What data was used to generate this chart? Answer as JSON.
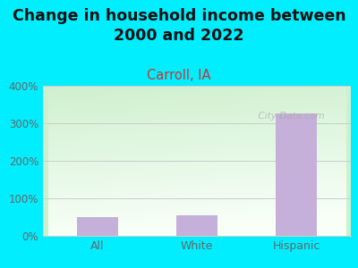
{
  "categories": [
    "All",
    "White",
    "Hispanic"
  ],
  "values": [
    50,
    55,
    325
  ],
  "bar_color": "#c4b0d8",
  "title": "Change in household income between\n2000 and 2022",
  "subtitle": "Carroll, IA",
  "subtitle_color": "#cc3333",
  "title_color": "#111111",
  "title_fontsize": 12.5,
  "subtitle_fontsize": 10.5,
  "ylim": [
    0,
    400
  ],
  "yticks": [
    0,
    100,
    200,
    300,
    400
  ],
  "ytick_labels": [
    "0%",
    "100%",
    "200%",
    "300%",
    "400%"
  ],
  "background_outer": "#00eeff",
  "plot_bg_topleft": "#cff0cf",
  "plot_bg_bottomright": "#f5fff5",
  "grid_color": "#cccccc",
  "tick_color": "#666666",
  "watermark": "  City-Data.com",
  "watermark_icon": "ⓘ"
}
